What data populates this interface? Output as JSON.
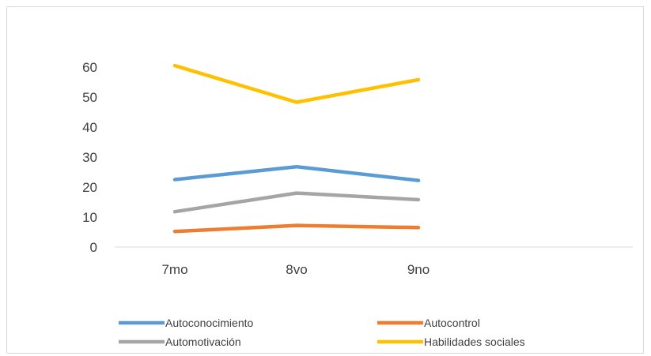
{
  "chart_data": {
    "type": "line",
    "categories": [
      "7mo",
      "8vo",
      "9no"
    ],
    "y_ticks": [
      "0",
      "10",
      "20",
      "30",
      "40",
      "50",
      "60"
    ],
    "ylim": [
      0,
      60
    ],
    "grid": false,
    "legend_position": "bottom",
    "series": [
      {
        "name": "Autoconocimiento",
        "values": [
          22.5,
          26.8,
          22.2
        ],
        "color": "#5b9bd5"
      },
      {
        "name": "Autocontrol",
        "values": [
          5.2,
          7.2,
          6.5
        ],
        "color": "#ed7d31"
      },
      {
        "name": "Automotivación",
        "values": [
          11.8,
          18.0,
          15.8
        ],
        "color": "#a5a5a5"
      },
      {
        "name": "Habilidades sociales",
        "values": [
          60.5,
          48.3,
          55.8
        ],
        "color": "#ffc000"
      }
    ]
  }
}
